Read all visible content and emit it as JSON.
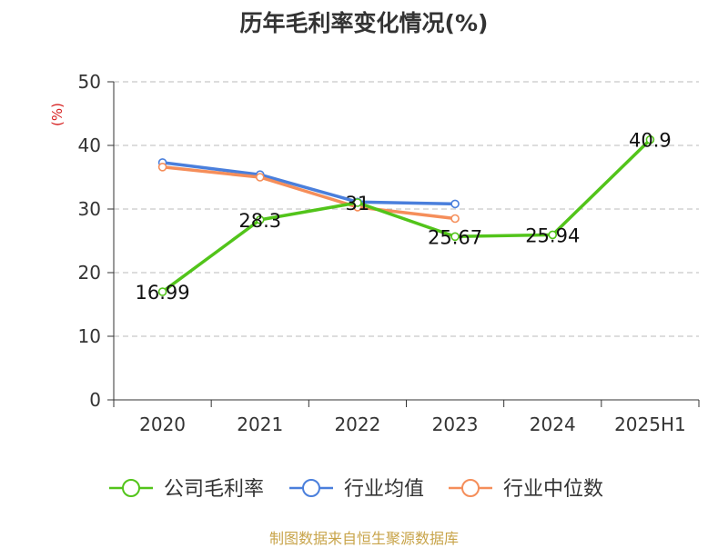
{
  "title": "历年毛利率变化情况(%)",
  "source": "制图数据来自恒生聚源数据库",
  "chart_data": {
    "type": "line",
    "title": "历年毛利率变化情况(%)",
    "unit_label": "(%)",
    "categories": [
      "2020",
      "2021",
      "2022",
      "2023",
      "2024",
      "2025H1"
    ],
    "ylim": [
      0,
      50
    ],
    "yticks": [
      0,
      10,
      20,
      30,
      40,
      50
    ],
    "grid": true,
    "legend_position": "bottom",
    "series": [
      {
        "name": "公司毛利率",
        "color": "#52c41a",
        "values": [
          16.99,
          28.3,
          31,
          25.67,
          25.94,
          40.9
        ],
        "labels": [
          "16.99",
          "28.3",
          "31",
          "25.67",
          "25.94",
          "40.9"
        ]
      },
      {
        "name": "行业均值",
        "color": "#4a7fdc",
        "values": [
          37.3,
          35.4,
          31.1,
          30.8,
          null,
          null
        ]
      },
      {
        "name": "行业中位数",
        "color": "#f58e5a",
        "values": [
          36.6,
          35.0,
          30.3,
          28.5,
          null,
          null
        ]
      }
    ],
    "colors": {
      "axis": "#333333",
      "grid": "#bbbbbb",
      "unit_label": "#d62020"
    }
  }
}
